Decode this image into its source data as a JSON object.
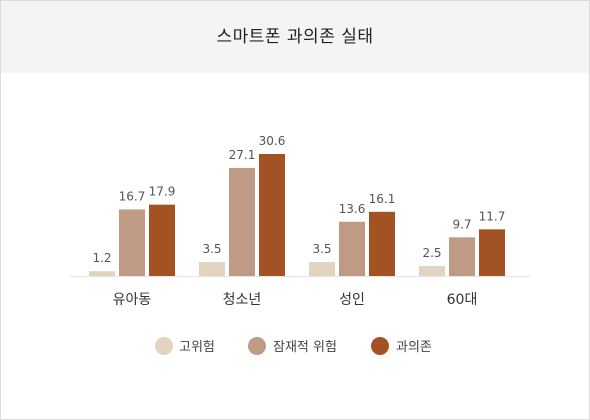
{
  "title": "스마트폰 과의존 실태",
  "chart_data": {
    "type": "bar",
    "title": "스마트폰 과의존 실태",
    "categories": [
      "유아동",
      "청소년",
      "성인",
      "60대"
    ],
    "series": [
      {
        "name": "고위험",
        "values": [
          1.2,
          3.5,
          3.5,
          2.5
        ],
        "labels": [
          "1.2",
          "3.5",
          "3.5",
          "2.5"
        ],
        "color": "#e2d4bf"
      },
      {
        "name": "잠재적 위험",
        "values": [
          16.7,
          27.1,
          13.6,
          9.7
        ],
        "labels": [
          "16.7",
          "27.1",
          "13.6",
          "9.7"
        ],
        "color": "#bf9b86"
      },
      {
        "name": "과의존",
        "values": [
          17.9,
          30.6,
          16.1,
          11.7
        ],
        "labels": [
          "17.9",
          "30.6",
          "16.1",
          "11.7"
        ],
        "color": "#a35223"
      }
    ],
    "xlabel": "",
    "ylabel": "",
    "ylim": [
      0,
      35
    ],
    "grid": false,
    "legend_position": "bottom"
  }
}
